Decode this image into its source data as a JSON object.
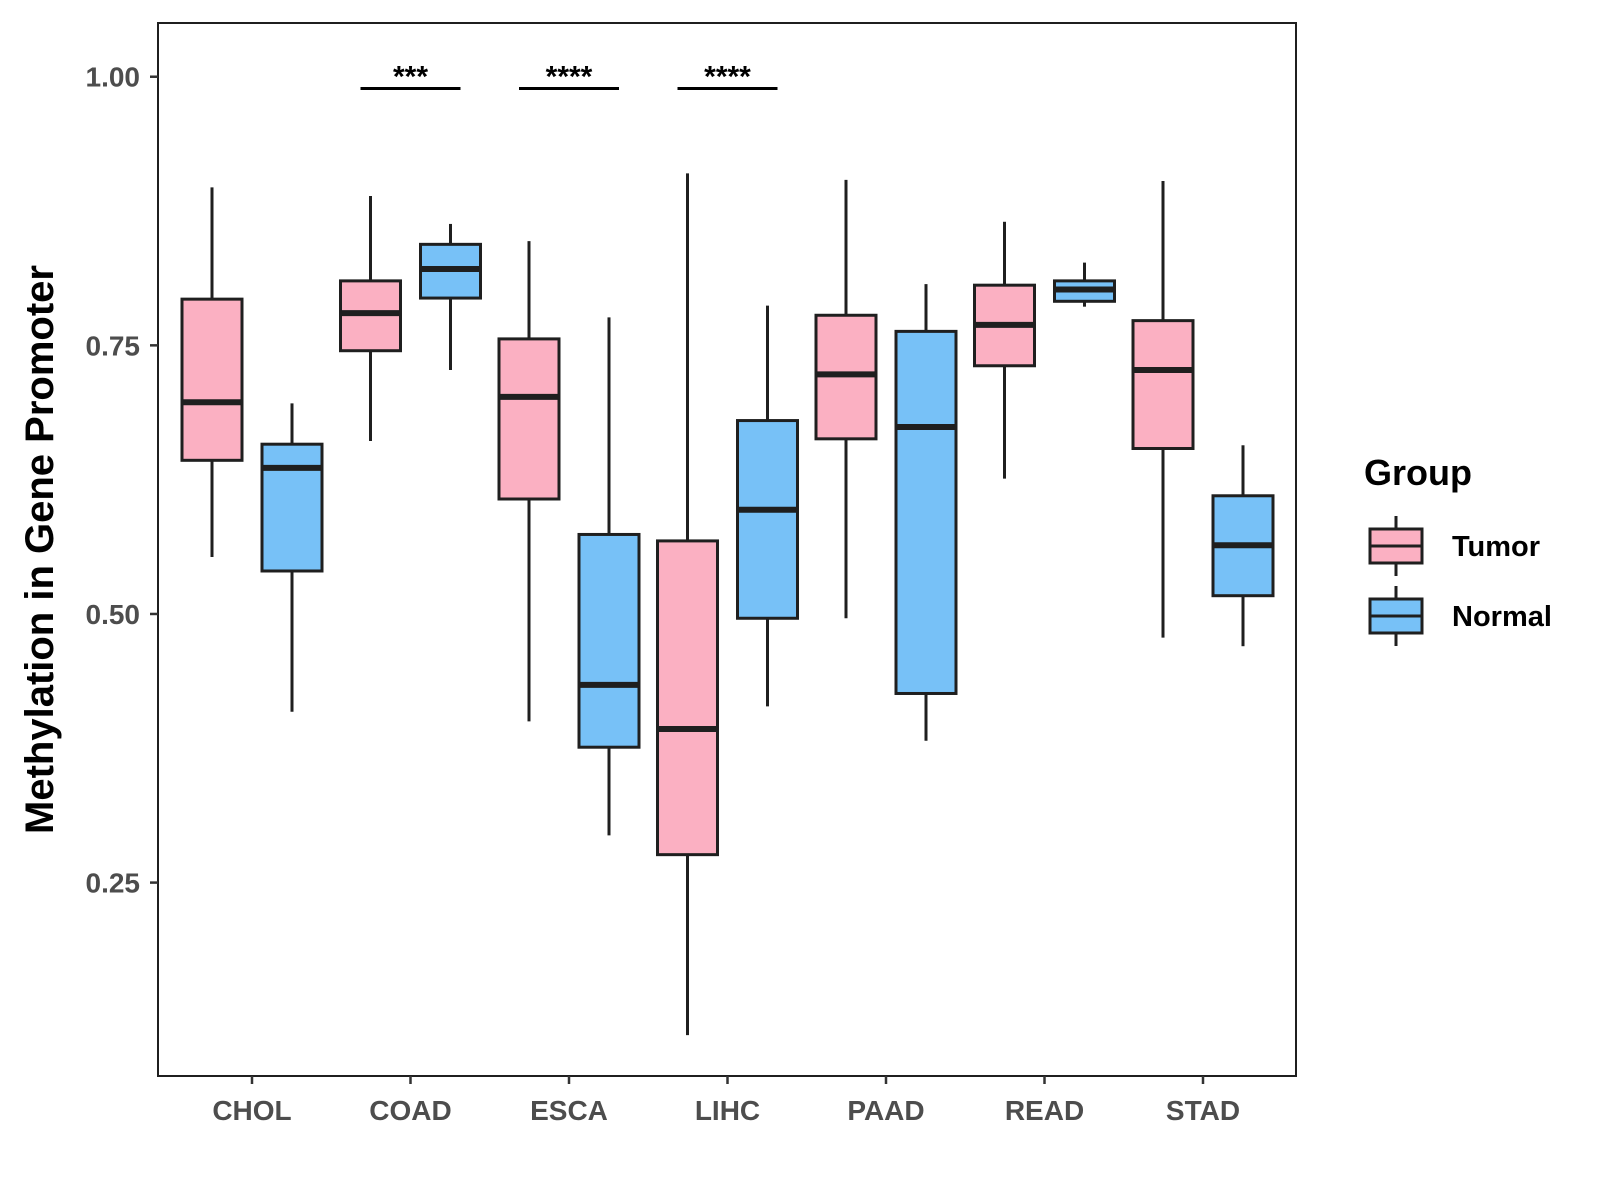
{
  "chart_data": {
    "type": "boxplot",
    "title": "",
    "xlabel": "",
    "ylabel": "Methylation in Gene Promoter",
    "ylim": [
      0.07,
      1.05
    ],
    "yticks": [
      0.25,
      0.5,
      0.75,
      1.0
    ],
    "ytick_labels": [
      "0.25",
      "0.50",
      "0.75",
      "1.00"
    ],
    "categories": [
      "CHOL",
      "COAD",
      "ESCA",
      "LIHC",
      "PAAD",
      "READ",
      "STAD"
    ],
    "legend": {
      "title": "Group",
      "position": "right",
      "entries": [
        {
          "name": "Tumor",
          "color": "#FBB0C2"
        },
        {
          "name": "Normal",
          "color": "#77C1F7"
        }
      ]
    },
    "series": [
      {
        "name": "Tumor",
        "color": "#FBB0C2",
        "boxes": [
          {
            "whisker_low": 0.553,
            "q1": 0.643,
            "median": 0.697,
            "q3": 0.793,
            "whisker_high": 0.897
          },
          {
            "whisker_low": 0.661,
            "q1": 0.745,
            "median": 0.78,
            "q3": 0.81,
            "whisker_high": 0.889
          },
          {
            "whisker_low": 0.4,
            "q1": 0.607,
            "median": 0.702,
            "q3": 0.756,
            "whisker_high": 0.847
          },
          {
            "whisker_low": 0.108,
            "q1": 0.276,
            "median": 0.393,
            "q3": 0.568,
            "whisker_high": 0.91
          },
          {
            "whisker_low": 0.496,
            "q1": 0.663,
            "median": 0.723,
            "q3": 0.778,
            "whisker_high": 0.904
          },
          {
            "whisker_low": 0.626,
            "q1": 0.731,
            "median": 0.769,
            "q3": 0.806,
            "whisker_high": 0.865
          },
          {
            "whisker_low": 0.478,
            "q1": 0.654,
            "median": 0.727,
            "q3": 0.773,
            "whisker_high": 0.903
          }
        ]
      },
      {
        "name": "Normal",
        "color": "#77C1F7",
        "boxes": [
          {
            "whisker_low": 0.409,
            "q1": 0.54,
            "median": 0.636,
            "q3": 0.658,
            "whisker_high": 0.696
          },
          {
            "whisker_low": 0.727,
            "q1": 0.794,
            "median": 0.821,
            "q3": 0.844,
            "whisker_high": 0.863
          },
          {
            "whisker_low": 0.294,
            "q1": 0.376,
            "median": 0.434,
            "q3": 0.574,
            "whisker_high": 0.776
          },
          {
            "whisker_low": 0.414,
            "q1": 0.496,
            "median": 0.597,
            "q3": 0.68,
            "whisker_high": 0.787
          },
          {
            "whisker_low": 0.382,
            "q1": 0.426,
            "median": 0.674,
            "q3": 0.763,
            "whisker_high": 0.807
          },
          {
            "whisker_low": 0.786,
            "q1": 0.791,
            "median": 0.802,
            "q3": 0.81,
            "whisker_high": 0.827
          },
          {
            "whisker_low": 0.47,
            "q1": 0.517,
            "median": 0.564,
            "q3": 0.61,
            "whisker_high": 0.657
          }
        ]
      }
    ],
    "annotations": [
      {
        "category": "COAD",
        "label": "***",
        "y": 0.989
      },
      {
        "category": "ESCA",
        "label": "****",
        "y": 0.989
      },
      {
        "category": "LIHC",
        "label": "****",
        "y": 0.989
      }
    ]
  },
  "colors": {
    "tumor": "#FBB0C2",
    "normal": "#77C1F7",
    "stroke": "#1f1f1f",
    "axis_text": "#4d4d4d"
  }
}
